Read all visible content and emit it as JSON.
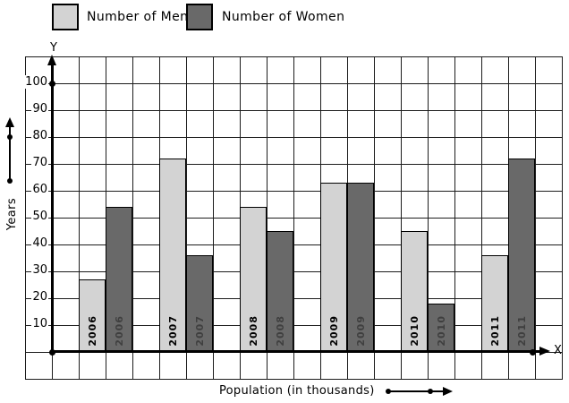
{
  "legend": {
    "items": [
      {
        "label": "Number of Men",
        "color": "#d3d3d3"
      },
      {
        "label": "Number of Women",
        "color": "#696969"
      }
    ]
  },
  "axes": {
    "y_letter": "Y",
    "x_letter": "X",
    "y_axis_label": "Years",
    "x_axis_label": "Population (in thousands)",
    "y_ticks": [
      10,
      20,
      30,
      40,
      50,
      60,
      70,
      80,
      90,
      100
    ]
  },
  "chart_data": {
    "type": "bar",
    "categories": [
      "2006",
      "2007",
      "2008",
      "2009",
      "2010",
      "2011"
    ],
    "series": [
      {
        "key": "men",
        "name": "Number of Men",
        "color": "#d3d3d3",
        "label_color": "#000000",
        "values": [
          27,
          72,
          54,
          63,
          45,
          36
        ]
      },
      {
        "key": "women",
        "name": "Number of Women",
        "color": "#696969",
        "label_color": "#3f3f3f",
        "values": [
          54,
          36,
          45,
          63,
          18,
          72
        ]
      }
    ],
    "xlabel": "Population (in thousands)",
    "ylabel": "Years",
    "ylim": [
      0,
      100
    ],
    "grid": true,
    "legend_position": "top",
    "bar_category_labels": "inside-bottom-rotated"
  }
}
